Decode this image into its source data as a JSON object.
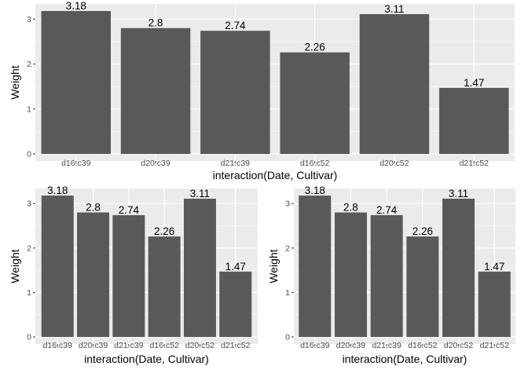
{
  "chart_data": [
    {
      "type": "bar",
      "categories": [
        "d16.c39",
        "d20.c39",
        "d21.c39",
        "d16.c52",
        "d20.c52",
        "d21.c52"
      ],
      "values": [
        3.18,
        2.8,
        2.74,
        2.26,
        3.11,
        1.47
      ],
      "data_labels": [
        "3.18",
        "2.8",
        "2.74",
        "2.26",
        "3.11",
        "1.47"
      ],
      "xlabel": "interaction(Date, Cultivar)",
      "ylabel": "Weight",
      "yticks": [
        0,
        1,
        2,
        3
      ],
      "ylim": [
        0,
        3.18
      ],
      "grid": true
    },
    {
      "type": "bar",
      "categories": [
        "d16.c39",
        "d20.c39",
        "d21.c39",
        "d16.c52",
        "d20.c52",
        "d21.c52"
      ],
      "values": [
        3.18,
        2.8,
        2.74,
        2.26,
        3.11,
        1.47
      ],
      "data_labels": [
        "3.18",
        "2.8",
        "2.74",
        "2.26",
        "3.11",
        "1.47"
      ],
      "xlabel": "interaction(Date, Cultivar)",
      "ylabel": "Weight",
      "yticks": [
        0,
        1,
        2,
        3
      ],
      "ylim": [
        0,
        3.18
      ],
      "grid": true
    },
    {
      "type": "bar",
      "categories": [
        "d16.c39",
        "d20.c39",
        "d21.c39",
        "d16.c52",
        "d20.c52",
        "d21.c52"
      ],
      "values": [
        3.18,
        2.8,
        2.74,
        2.26,
        3.11,
        1.47
      ],
      "data_labels": [
        "3.18",
        "2.8",
        "2.74",
        "2.26",
        "3.11",
        "1.47"
      ],
      "xlabel": "interaction(Date, Cultivar)",
      "ylabel": "Weight",
      "yticks": [
        0,
        1,
        2,
        3
      ],
      "ylim": [
        0,
        3.18
      ],
      "grid": true
    }
  ],
  "colors": {
    "panel_background": "#ebebeb",
    "gridline": "#ffffff",
    "bar_fill": "#595959",
    "tick_text": "#4d4d4d",
    "tick_mark": "#333333"
  }
}
